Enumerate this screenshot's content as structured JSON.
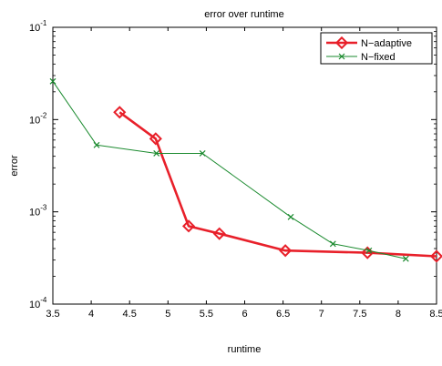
{
  "chart_data": {
    "type": "line",
    "title": "error over runtime",
    "xlabel": "runtime",
    "ylabel": "error",
    "xlim": [
      3.5,
      8.5
    ],
    "ylim": [
      0.0001,
      0.1
    ],
    "yscale": "log",
    "grid": false,
    "legend_position": "top-right",
    "x_ticks": [
      {
        "value": 3.5,
        "label": "3.5"
      },
      {
        "value": 4,
        "label": "4"
      },
      {
        "value": 4.5,
        "label": "4.5"
      },
      {
        "value": 5,
        "label": "5"
      },
      {
        "value": 5.5,
        "label": "5.5"
      },
      {
        "value": 6,
        "label": "6"
      },
      {
        "value": 6.5,
        "label": "6.5"
      },
      {
        "value": 7,
        "label": "7"
      },
      {
        "value": 7.5,
        "label": "7.5"
      },
      {
        "value": 8,
        "label": "8"
      },
      {
        "value": 8.5,
        "label": "8.5"
      }
    ],
    "y_ticks": [
      {
        "value": 0.0001,
        "base": "10",
        "exp": "-4"
      },
      {
        "value": 0.001,
        "base": "10",
        "exp": "-3"
      },
      {
        "value": 0.01,
        "base": "10",
        "exp": "-2"
      },
      {
        "value": 0.1,
        "base": "10",
        "exp": "-1"
      }
    ],
    "series": [
      {
        "name": "N−adaptive",
        "color": "#e8202a",
        "marker": "diamond",
        "line_style": "thick",
        "points": [
          {
            "x": 4.37,
            "y": 0.012
          },
          {
            "x": 4.84,
            "y": 0.0062
          },
          {
            "x": 5.27,
            "y": 0.0007
          },
          {
            "x": 5.67,
            "y": 0.00058
          },
          {
            "x": 6.53,
            "y": 0.00038
          },
          {
            "x": 7.6,
            "y": 0.00036
          },
          {
            "x": 8.5,
            "y": 0.00033
          }
        ]
      },
      {
        "name": "N−fixed",
        "color": "#1a8a2e",
        "marker": "x",
        "line_style": "thin",
        "points": [
          {
            "x": 3.5,
            "y": 0.026
          },
          {
            "x": 4.07,
            "y": 0.0053
          },
          {
            "x": 4.85,
            "y": 0.0043
          },
          {
            "x": 5.45,
            "y": 0.0043
          },
          {
            "x": 6.6,
            "y": 0.00088
          },
          {
            "x": 7.15,
            "y": 0.00045
          },
          {
            "x": 7.62,
            "y": 0.00038
          },
          {
            "x": 8.1,
            "y": 0.00031
          }
        ]
      }
    ]
  }
}
